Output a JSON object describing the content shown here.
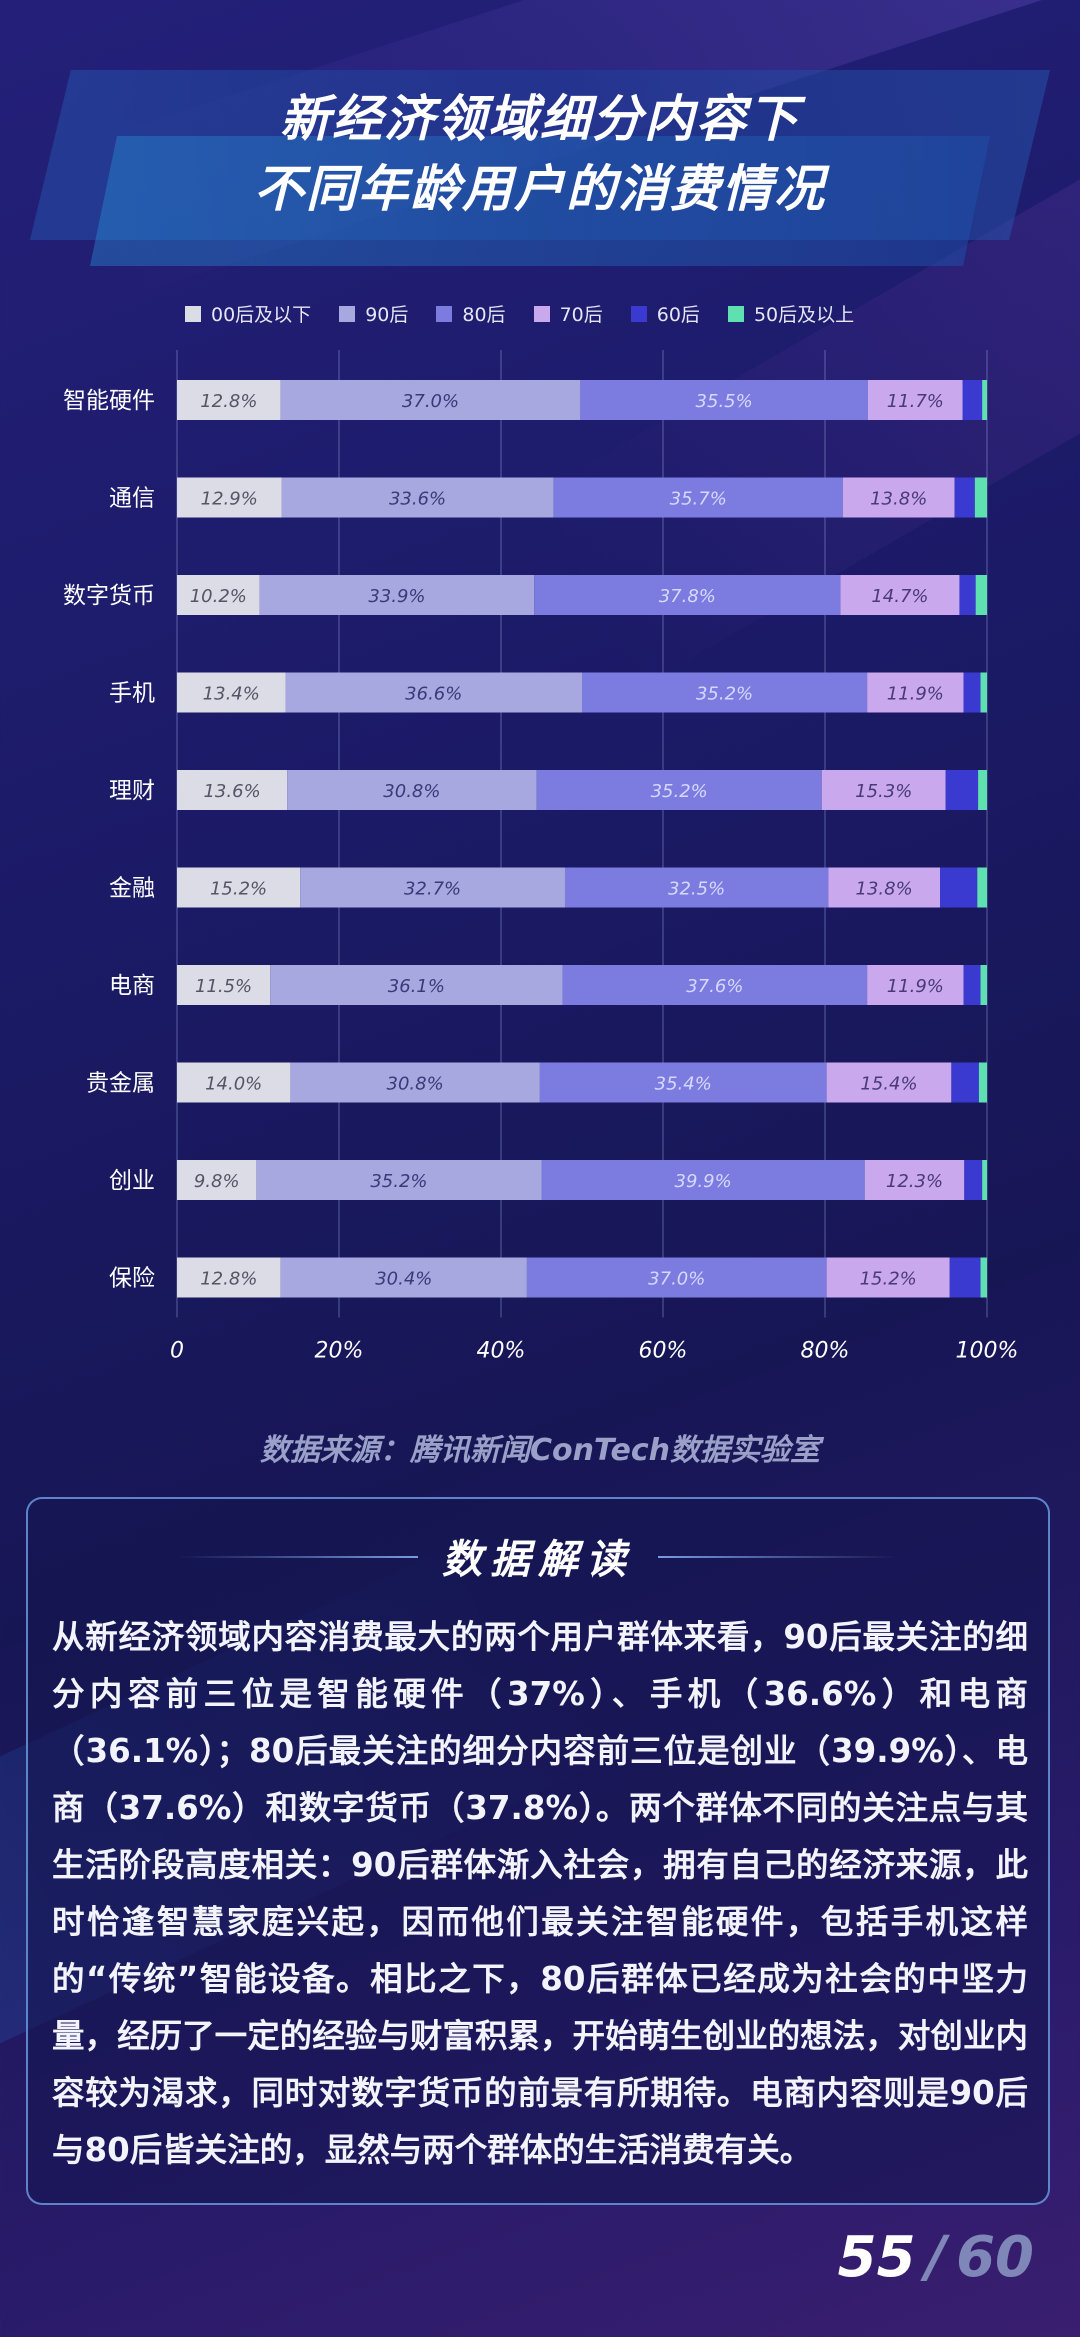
{
  "title_line1": "新经济领域细分内容下",
  "title_line2": "不同年龄用户的消费情况",
  "source": "数据来源：腾讯新闻ConTech数据实验室",
  "panel": {
    "title": "数据解读",
    "body": "从新经济领域内容消费最大的两个用户群体来看，90后最关注的细分内容前三位是智能硬件（37%）、手机（36.6%）和电商（36.1%）；80后最关注的细分内容前三位是创业（39.9%）、电商（37.6%）和数字货币（37.8%）。两个群体不同的关注点与其生活阶段高度相关：90后群体渐入社会，拥有自己的经济来源，此时恰逢智慧家庭兴起，因而他们最关注智能硬件，包括手机这样的“传统”智能设备。相比之下，80后群体已经成为社会的中坚力量，经历了一定的经验与财富积累，开始萌生创业的想法，对创业内容较为渴求，同时对数字货币的前景有所期待。电商内容则是90后与80后皆关注的，显然与两个群体的生活消费有关。"
  },
  "page": {
    "current": "55",
    "separator": "/",
    "total": "60"
  },
  "chart_data": {
    "type": "bar",
    "orientation": "horizontal",
    "stacked": true,
    "categories": [
      "智能硬件",
      "通信",
      "数字货币",
      "手机",
      "理财",
      "金融",
      "电商",
      "贵金属",
      "创业",
      "保险"
    ],
    "series": [
      {
        "name": "00后及以下",
        "color": "#dcdce6",
        "label_color": "#555566",
        "values": [
          12.8,
          12.9,
          10.2,
          13.4,
          13.6,
          15.2,
          11.5,
          14.0,
          9.8,
          12.8
        ]
      },
      {
        "name": "90后",
        "color": "#a8a8e0",
        "label_color": "#3a3a7a",
        "values": [
          37.0,
          33.6,
          33.9,
          36.6,
          30.8,
          32.7,
          36.1,
          30.8,
          35.2,
          30.4
        ]
      },
      {
        "name": "80后",
        "color": "#7c7ce0",
        "label_color": "#d6d8ff",
        "values": [
          35.5,
          35.7,
          37.8,
          35.2,
          35.2,
          32.5,
          37.6,
          35.4,
          39.9,
          37.0
        ]
      },
      {
        "name": "70后",
        "color": "#c9a8ee",
        "label_color": "#4a3a7a",
        "values": [
          11.7,
          13.8,
          14.7,
          11.9,
          15.3,
          13.8,
          11.9,
          15.4,
          12.3,
          15.2
        ]
      },
      {
        "name": "60后",
        "color": "#3a3ad0",
        "label_color": "#ffffff",
        "values": [
          2.4,
          2.5,
          2.0,
          2.1,
          4.0,
          4.6,
          2.1,
          3.4,
          2.2,
          3.8
        ]
      },
      {
        "name": "50后及以上",
        "color": "#5fe0b0",
        "label_color": "#ffffff",
        "values": [
          0.6,
          1.5,
          1.4,
          0.8,
          1.1,
          1.2,
          0.8,
          1.0,
          0.6,
          0.8
        ]
      }
    ],
    "show_labels_for_series": [
      0,
      1,
      2,
      3
    ],
    "x_ticks": [
      "0",
      "20%",
      "40%",
      "60%",
      "80%",
      "100%"
    ],
    "xlim": [
      0,
      100
    ],
    "grid": true,
    "legend": "top"
  }
}
